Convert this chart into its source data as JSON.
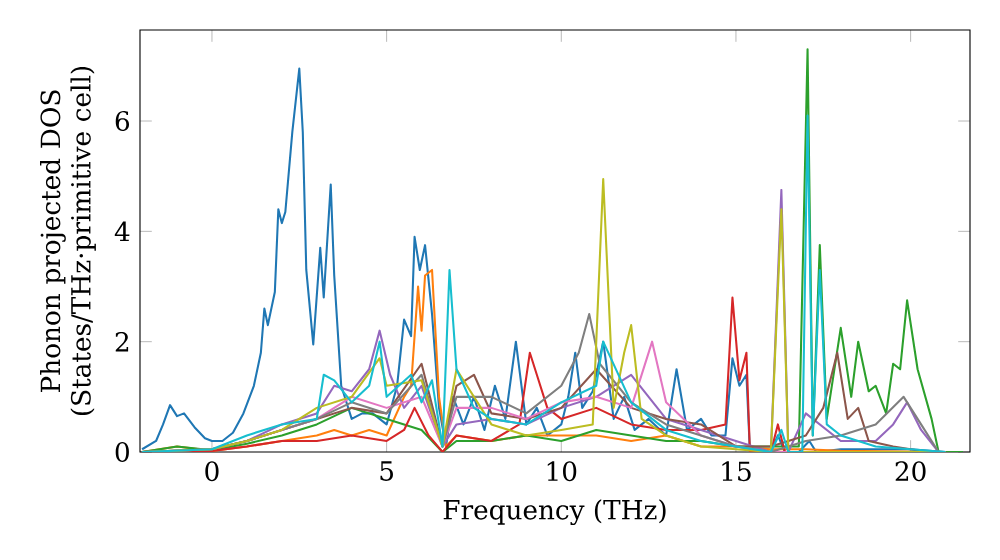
{
  "chart_data": {
    "type": "line",
    "xlabel": "Frequency (THz)",
    "ylabel": "Phonon projected DOS (States/THz·primitive cell)",
    "xlim": [
      -2.06,
      21.7
    ],
    "ylim": [
      0,
      7.65
    ],
    "xticks": [
      0,
      5,
      10,
      15,
      20
    ],
    "yticks": [
      0,
      2,
      4,
      6
    ],
    "grid": false,
    "marker": "none",
    "line_style": "solid",
    "series": [
      {
        "color": "#1f77b4",
        "x": [
          -2,
          -1.6,
          -1.4,
          -1.2,
          -1,
          -0.8,
          -0.5,
          -0.2,
          0,
          0.3,
          0.6,
          0.9,
          1.2,
          1.4,
          1.5,
          1.6,
          1.8,
          1.9,
          2.0,
          2.1,
          2.3,
          2.5,
          2.6,
          2.7,
          2.9,
          3.1,
          3.2,
          3.4,
          3.5,
          3.7,
          4.0,
          4.3,
          4.6,
          5.0,
          5.3,
          5.5,
          5.7,
          5.8,
          5.95,
          6.1,
          6.3,
          6.5,
          6.7,
          6.9,
          7.2,
          7.5,
          7.8,
          8.1,
          8.4,
          8.7,
          9.0,
          9.3,
          9.6,
          10.0,
          10.2,
          10.4,
          10.6,
          10.9,
          11.2,
          11.5,
          11.8,
          12.1,
          12.5,
          13.0,
          13.3,
          13.6,
          14.0,
          14.3,
          14.7,
          14.9,
          15.1,
          15.3,
          15.4,
          16.0,
          16.2,
          16.4,
          16.8,
          17.1,
          17.3,
          18,
          20,
          21
        ],
        "values": [
          0.05,
          0.2,
          0.5,
          0.85,
          0.65,
          0.7,
          0.45,
          0.25,
          0.2,
          0.2,
          0.35,
          0.7,
          1.2,
          1.8,
          2.6,
          2.3,
          2.9,
          4.4,
          4.15,
          4.35,
          5.8,
          6.95,
          5.8,
          3.3,
          1.95,
          3.7,
          2.8,
          4.85,
          3.2,
          1.2,
          0.6,
          0.7,
          0.7,
          0.5,
          1.2,
          2.4,
          2.1,
          3.9,
          3.3,
          3.75,
          2.5,
          0.8,
          0.1,
          1.0,
          0.5,
          1.0,
          0.4,
          1.2,
          0.6,
          2.0,
          0.5,
          0.8,
          0.3,
          0.5,
          1.0,
          1.8,
          0.8,
          1.1,
          2.0,
          0.6,
          1.0,
          0.4,
          0.6,
          0.3,
          1.5,
          0.4,
          0.6,
          0.3,
          0.3,
          1.7,
          1.2,
          1.4,
          0.0,
          0.0,
          0.3,
          0.0,
          0.0,
          0.2,
          0.0,
          0.05,
          0.05,
          0.0
        ]
      },
      {
        "color": "#ff7f0e",
        "x": [
          -2,
          -1,
          0,
          1,
          2,
          3,
          3.5,
          4,
          4.5,
          5,
          5.5,
          5.7,
          5.9,
          6.0,
          6.1,
          6.3,
          6.5,
          6.7,
          7,
          8,
          9,
          10,
          11,
          12,
          13,
          14,
          15,
          16,
          17,
          18,
          21
        ],
        "values": [
          0,
          0.1,
          0.02,
          0.1,
          0.2,
          0.3,
          0.4,
          0.3,
          0.4,
          0.3,
          1.0,
          1.2,
          3.0,
          2.2,
          3.2,
          3.3,
          1.0,
          0.1,
          0.3,
          0.2,
          0.3,
          0.3,
          0.3,
          0.2,
          0.3,
          0.1,
          0.1,
          0.05,
          0.05,
          0.02,
          0
        ]
      },
      {
        "color": "#2ca02c",
        "x": [
          -2,
          -1,
          0,
          1,
          2,
          3,
          4,
          5,
          6,
          6.6,
          7,
          8,
          9,
          10,
          11,
          12,
          13,
          14,
          15,
          16,
          16.8,
          17.05,
          17.2,
          17.4,
          17.6,
          18.0,
          18.3,
          18.5,
          18.8,
          19.0,
          19.3,
          19.5,
          19.7,
          19.9,
          20.2,
          20.6,
          20.8,
          21.5
        ],
        "values": [
          0,
          0.1,
          0.03,
          0.15,
          0.3,
          0.5,
          0.8,
          0.6,
          0.4,
          0.0,
          0.2,
          0.2,
          0.3,
          0.2,
          0.4,
          0.3,
          0.2,
          0.2,
          0.1,
          0.1,
          0.1,
          7.3,
          0.3,
          3.75,
          0.6,
          2.25,
          1.0,
          2.0,
          1.1,
          1.2,
          0.7,
          1.6,
          1.5,
          2.75,
          1.5,
          0.6,
          0.0,
          0.0
        ]
      },
      {
        "color": "#d62728",
        "x": [
          -2,
          0,
          1,
          2,
          3,
          4,
          5,
          5.5,
          5.8,
          6.2,
          6.6,
          7,
          8,
          8.8,
          9.1,
          9.3,
          9.6,
          10,
          11,
          12,
          13,
          14,
          14.7,
          14.9,
          15.1,
          15.3,
          15.4,
          16,
          16.2,
          16.4,
          17,
          21
        ],
        "values": [
          0,
          0.02,
          0.1,
          0.2,
          0.2,
          0.3,
          0.2,
          0.4,
          0.8,
          0.3,
          0.0,
          0.3,
          0.2,
          0.5,
          1.8,
          1.4,
          0.8,
          0.6,
          0.8,
          0.5,
          0.4,
          0.4,
          0.5,
          2.8,
          1.3,
          1.8,
          0.0,
          0.0,
          0.5,
          0.0,
          0.0,
          0
        ]
      },
      {
        "color": "#9467bd",
        "x": [
          -2,
          0,
          1,
          2,
          3,
          3.5,
          4,
          4.5,
          4.8,
          5.1,
          5.5,
          6,
          6.6,
          7,
          8,
          9,
          10,
          11,
          12,
          13,
          14,
          15,
          16,
          16.3,
          16.5,
          17,
          18,
          19,
          19.5,
          19.9,
          20.3,
          20.8
        ],
        "values": [
          0,
          0.05,
          0.2,
          0.5,
          0.7,
          1.2,
          1.1,
          1.5,
          2.2,
          1.4,
          0.8,
          1.2,
          0.1,
          0.5,
          0.6,
          0.5,
          0.8,
          1.0,
          1.4,
          0.6,
          0.4,
          0.2,
          0.0,
          4.75,
          0.0,
          0.7,
          0.2,
          0.2,
          0.5,
          0.9,
          0.4,
          0.0
        ]
      },
      {
        "color": "#8c564b",
        "x": [
          -2,
          0,
          1,
          2,
          3,
          4,
          5,
          6,
          6.6,
          7,
          7.5,
          8,
          9,
          10,
          11,
          12,
          13,
          14,
          15,
          16,
          17,
          17.5,
          17.9,
          18.2,
          18.5,
          18.8,
          19.5,
          20.5
        ],
        "values": [
          0,
          0.05,
          0.2,
          0.4,
          0.6,
          0.8,
          0.7,
          1.6,
          0.1,
          1.2,
          1.4,
          0.7,
          0.6,
          0.8,
          1.5,
          0.8,
          0.6,
          0.5,
          0.1,
          0.1,
          0.3,
          0.8,
          1.8,
          0.6,
          0.8,
          0.2,
          0.1,
          0.0
        ]
      },
      {
        "color": "#e377c2",
        "x": [
          1,
          2,
          3,
          4,
          5,
          6,
          6.6,
          7,
          8,
          9,
          10,
          11,
          12,
          12.6,
          13,
          14,
          15,
          16,
          21
        ],
        "values": [
          0.2,
          0.4,
          0.6,
          1.0,
          0.8,
          1.0,
          0.1,
          0.8,
          0.8,
          0.6,
          0.9,
          1.0,
          0.8,
          2.0,
          0.9,
          0.3,
          0.1,
          0.0,
          0.0
        ]
      },
      {
        "color": "#7f7f7f",
        "x": [
          -2,
          0,
          1,
          2,
          3,
          4,
          5,
          6,
          6.6,
          7,
          8,
          9,
          10,
          10.5,
          10.8,
          11.1,
          12,
          13,
          14,
          15,
          16,
          17,
          18,
          19,
          19.8,
          20.3,
          20.8
        ],
        "values": [
          0,
          0.05,
          0.2,
          0.4,
          0.6,
          0.9,
          0.7,
          1.4,
          0.1,
          1.0,
          1.0,
          0.7,
          1.2,
          1.8,
          2.5,
          1.6,
          0.9,
          0.5,
          0.3,
          0.1,
          0.0,
          0.2,
          0.3,
          0.5,
          1.0,
          0.5,
          0.0
        ]
      },
      {
        "color": "#bcbd22",
        "x": [
          -2,
          0,
          1,
          2,
          3,
          4,
          4.8,
          5,
          6,
          6.6,
          7,
          8,
          9,
          10,
          10.9,
          11.2,
          11.5,
          11.8,
          12.0,
          12.3,
          13,
          14,
          15,
          16,
          16.3,
          16.5,
          17,
          21
        ],
        "values": [
          0,
          0.05,
          0.2,
          0.4,
          0.8,
          1.0,
          1.7,
          1.2,
          1.3,
          0.1,
          1.5,
          0.5,
          0.3,
          0.4,
          0.5,
          4.95,
          0.8,
          1.8,
          2.3,
          0.6,
          0.3,
          0.1,
          0.05,
          0.0,
          4.4,
          0.0,
          0.0,
          0.0
        ]
      },
      {
        "color": "#17becf",
        "x": [
          -2,
          0,
          1,
          2,
          3,
          3.2,
          3.5,
          4,
          4.5,
          4.8,
          5,
          5.7,
          6.0,
          6.3,
          6.6,
          6.8,
          7.0,
          7.5,
          8,
          9,
          10,
          11,
          11.2,
          12,
          13,
          14,
          15,
          16,
          16.3,
          16.5,
          16.9,
          17.05,
          17.2,
          17.4,
          17.6,
          18,
          19,
          21
        ],
        "values": [
          0,
          0.05,
          0.3,
          0.5,
          0.6,
          1.4,
          1.3,
          0.9,
          1.2,
          2.0,
          1.0,
          1.4,
          0.9,
          1.3,
          0.1,
          3.3,
          1.5,
          0.8,
          0.6,
          0.5,
          0.9,
          1.2,
          2.0,
          0.9,
          0.4,
          0.2,
          0.1,
          0.0,
          0.4,
          0.0,
          0.0,
          6.1,
          0.3,
          3.3,
          0.5,
          0.3,
          0.1,
          0.0
        ]
      }
    ]
  }
}
